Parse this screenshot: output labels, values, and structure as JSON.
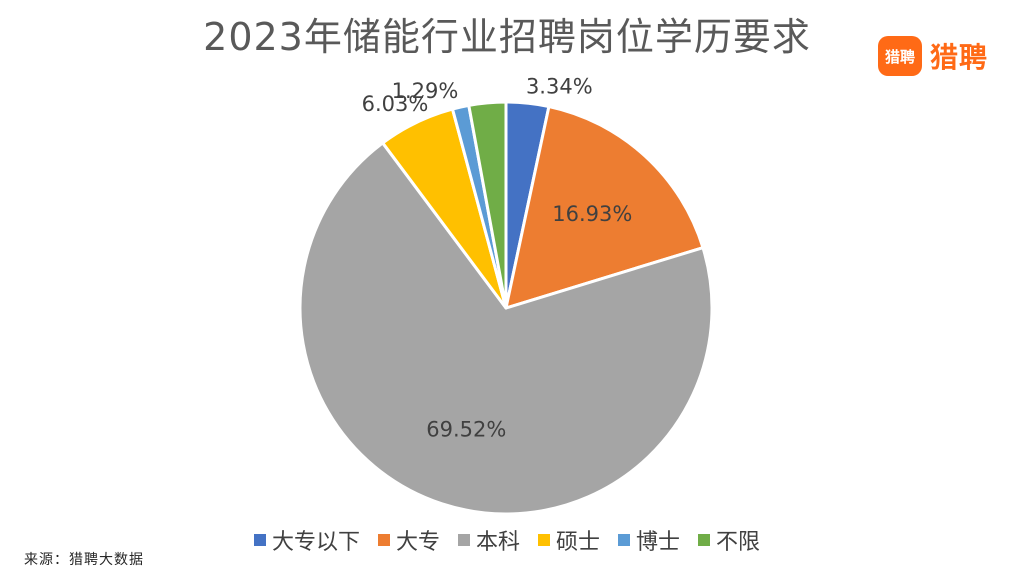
{
  "brand": {
    "badge_text": "猎聘",
    "name": "猎聘",
    "color": "#ff6a16"
  },
  "source": "来源：猎聘大数据",
  "chart_data": {
    "type": "pie",
    "title": "2023年储能行业招聘岗位学历要求",
    "legend_position": "bottom",
    "start_angle_deg": 0,
    "direction": "clockwise",
    "slices": [
      {
        "label": "大专以下",
        "value": 3.34,
        "display": "3.34%",
        "color": "#4472c4"
      },
      {
        "label": "大专",
        "value": 16.93,
        "display": "16.93%",
        "color": "#ed7d31"
      },
      {
        "label": "本科",
        "value": 69.52,
        "display": "69.52%",
        "color": "#a5a5a5"
      },
      {
        "label": "硕士",
        "value": 6.03,
        "display": "6.03%",
        "color": "#ffc000"
      },
      {
        "label": "博士",
        "value": 1.29,
        "display": "1.29%",
        "color": "#5b9bd5"
      },
      {
        "label": "不限",
        "value": 2.89,
        "display": "",
        "color": "#70ad47"
      }
    ]
  }
}
